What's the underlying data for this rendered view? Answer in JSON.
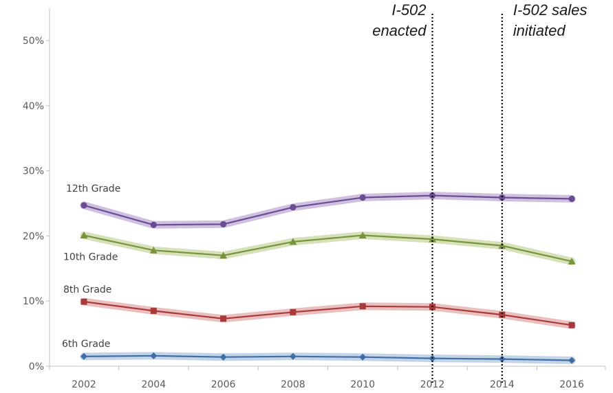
{
  "chart_data": {
    "type": "line",
    "title": "",
    "xlabel": "",
    "ylabel": "",
    "x": [
      2002,
      2004,
      2006,
      2008,
      2010,
      2012,
      2014,
      2016
    ],
    "x_tick_labels": [
      "2002",
      "2004",
      "2006",
      "2008",
      "2010",
      "2012",
      "2014",
      "2016"
    ],
    "ylim": [
      0,
      50
    ],
    "y_ticks": [
      0,
      10,
      20,
      30,
      40,
      50
    ],
    "y_tick_labels": [
      "0%",
      "10%",
      "20%",
      "30%",
      "40%",
      "50%"
    ],
    "grid": false,
    "series": [
      {
        "name": "12th Grade",
        "color": "#6a4c93",
        "band_color": "#c7b5db",
        "marker": "circle",
        "values": [
          24.7,
          21.7,
          21.8,
          24.4,
          25.9,
          26.2,
          25.9,
          25.7
        ]
      },
      {
        "name": "10th Grade",
        "color": "#77933c",
        "band_color": "#cfdcae",
        "marker": "triangle",
        "values": [
          20.1,
          17.8,
          17.0,
          19.1,
          20.1,
          19.5,
          18.5,
          16.1
        ]
      },
      {
        "name": "8th Grade",
        "color": "#a83a3a",
        "band_color": "#e6b4b4",
        "marker": "square",
        "values": [
          9.9,
          8.5,
          7.3,
          8.3,
          9.2,
          9.1,
          7.9,
          6.3
        ]
      },
      {
        "name": "6th Grade",
        "color": "#3f6ea6",
        "band_color": "#b9cde3",
        "marker": "diamond",
        "values": [
          1.5,
          1.6,
          1.4,
          1.5,
          1.4,
          1.2,
          1.1,
          0.9
        ]
      }
    ],
    "annotations": [
      {
        "x": 2012,
        "lines": [
          "I-502",
          "enacted"
        ],
        "style": "dotted-vertical"
      },
      {
        "x": 2014,
        "lines": [
          "I-502 sales",
          "initiated"
        ],
        "style": "dotted-vertical"
      }
    ]
  }
}
